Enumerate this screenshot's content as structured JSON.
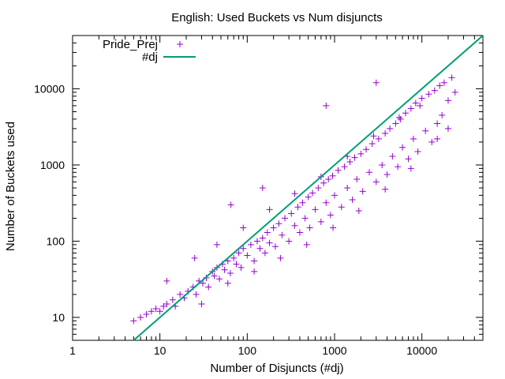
{
  "chart_data": {
    "type": "scatter",
    "title": "English: Used Buckets vs Num disjuncts",
    "xlabel": "Number of Disjuncts (#dj)",
    "ylabel": "Number of Buckets used",
    "xscale": "log",
    "yscale": "log",
    "xlim": [
      1,
      50000
    ],
    "ylim": [
      5,
      50000
    ],
    "grid": false,
    "legend_position": "top-left",
    "xticks": [
      {
        "value": 1,
        "label": "1"
      },
      {
        "value": 10,
        "label": "10"
      },
      {
        "value": 100,
        "label": "100"
      },
      {
        "value": 1000,
        "label": "1000"
      },
      {
        "value": 10000,
        "label": "10000"
      }
    ],
    "yticks": [
      {
        "value": 10,
        "label": "10"
      },
      {
        "value": 100,
        "label": "100"
      },
      {
        "value": 1000,
        "label": "1000"
      },
      {
        "value": 10000,
        "label": "10000"
      }
    ],
    "series": [
      {
        "name": "Pride_Prej",
        "kind": "scatter",
        "marker": "+",
        "color": "#9400d3",
        "points": [
          [
            5,
            9
          ],
          [
            6,
            10
          ],
          [
            7,
            11
          ],
          [
            8,
            12
          ],
          [
            9,
            13
          ],
          [
            10,
            12
          ],
          [
            11,
            14
          ],
          [
            12,
            15
          ],
          [
            14,
            17
          ],
          [
            15,
            14
          ],
          [
            17,
            20
          ],
          [
            19,
            18
          ],
          [
            21,
            22
          ],
          [
            24,
            25
          ],
          [
            26,
            20
          ],
          [
            28,
            30
          ],
          [
            31,
            28
          ],
          [
            34,
            33
          ],
          [
            36,
            25
          ],
          [
            40,
            40
          ],
          [
            42,
            35
          ],
          [
            45,
            45
          ],
          [
            48,
            32
          ],
          [
            52,
            50
          ],
          [
            55,
            42
          ],
          [
            60,
            55
          ],
          [
            64,
            38
          ],
          [
            70,
            60
          ],
          [
            75,
            50
          ],
          [
            80,
            70
          ],
          [
            85,
            45
          ],
          [
            90,
            80
          ],
          [
            100,
            65
          ],
          [
            110,
            90
          ],
          [
            120,
            55
          ],
          [
            130,
            100
          ],
          [
            140,
            80
          ],
          [
            150,
            110
          ],
          [
            160,
            70
          ],
          [
            170,
            130
          ],
          [
            180,
            95
          ],
          [
            200,
            150
          ],
          [
            210,
            85
          ],
          [
            230,
            170
          ],
          [
            250,
            120
          ],
          [
            270,
            200
          ],
          [
            300,
            100
          ],
          [
            320,
            230
          ],
          [
            350,
            160
          ],
          [
            380,
            280
          ],
          [
            400,
            130
          ],
          [
            430,
            320
          ],
          [
            460,
            200
          ],
          [
            500,
            380
          ],
          [
            520,
            150
          ],
          [
            560,
            430
          ],
          [
            600,
            260
          ],
          [
            650,
            500
          ],
          [
            700,
            180
          ],
          [
            750,
            580
          ],
          [
            800,
            320
          ],
          [
            850,
            650
          ],
          [
            900,
            220
          ],
          [
            950,
            720
          ],
          [
            1000,
            400
          ],
          [
            1100,
            850
          ],
          [
            1200,
            280
          ],
          [
            1300,
            950
          ],
          [
            1400,
            500
          ],
          [
            1500,
            1100
          ],
          [
            1600,
            350
          ],
          [
            1700,
            1250
          ],
          [
            1800,
            650
          ],
          [
            2000,
            1400
          ],
          [
            2100,
            450
          ],
          [
            2300,
            1600
          ],
          [
            2500,
            800
          ],
          [
            2700,
            1900
          ],
          [
            3000,
            600
          ],
          [
            3200,
            2200
          ],
          [
            3500,
            1000
          ],
          [
            3800,
            2600
          ],
          [
            4000,
            750
          ],
          [
            4300,
            3000
          ],
          [
            4600,
            1300
          ],
          [
            5000,
            3500
          ],
          [
            5300,
            950
          ],
          [
            5700,
            4000
          ],
          [
            6000,
            1700
          ],
          [
            6500,
            4800
          ],
          [
            7000,
            1200
          ],
          [
            7500,
            5500
          ],
          [
            8000,
            2200
          ],
          [
            8500,
            6500
          ],
          [
            9000,
            1500
          ],
          [
            10000,
            7500
          ],
          [
            11000,
            2800
          ],
          [
            12000,
            8500
          ],
          [
            13000,
            2000
          ],
          [
            14000,
            9500
          ],
          [
            15000,
            3500
          ],
          [
            16000,
            11000
          ],
          [
            17000,
            4500
          ],
          [
            18000,
            12000
          ],
          [
            20000,
            7000
          ],
          [
            22000,
            14000
          ],
          [
            24000,
            9000
          ],
          [
            65,
            300
          ],
          [
            150,
            500
          ],
          [
            800,
            6000
          ],
          [
            3000,
            12000
          ],
          [
            12,
            30
          ],
          [
            25,
            60
          ],
          [
            45,
            90
          ],
          [
            90,
            150
          ],
          [
            180,
            260
          ],
          [
            350,
            420
          ],
          [
            700,
            700
          ],
          [
            1400,
            1300
          ],
          [
            2800,
            2400
          ],
          [
            5500,
            4200
          ],
          [
            9500,
            6000
          ],
          [
            30,
            15
          ],
          [
            60,
            28
          ],
          [
            120,
            40
          ],
          [
            240,
            60
          ],
          [
            480,
            90
          ],
          [
            960,
            150
          ],
          [
            1900,
            250
          ],
          [
            3800,
            480
          ],
          [
            7500,
            900
          ],
          [
            15000,
            2200
          ],
          [
            20000,
            3000
          ]
        ]
      },
      {
        "name": "#dj",
        "kind": "line",
        "color": "#009e73",
        "function": "y = x"
      }
    ]
  }
}
